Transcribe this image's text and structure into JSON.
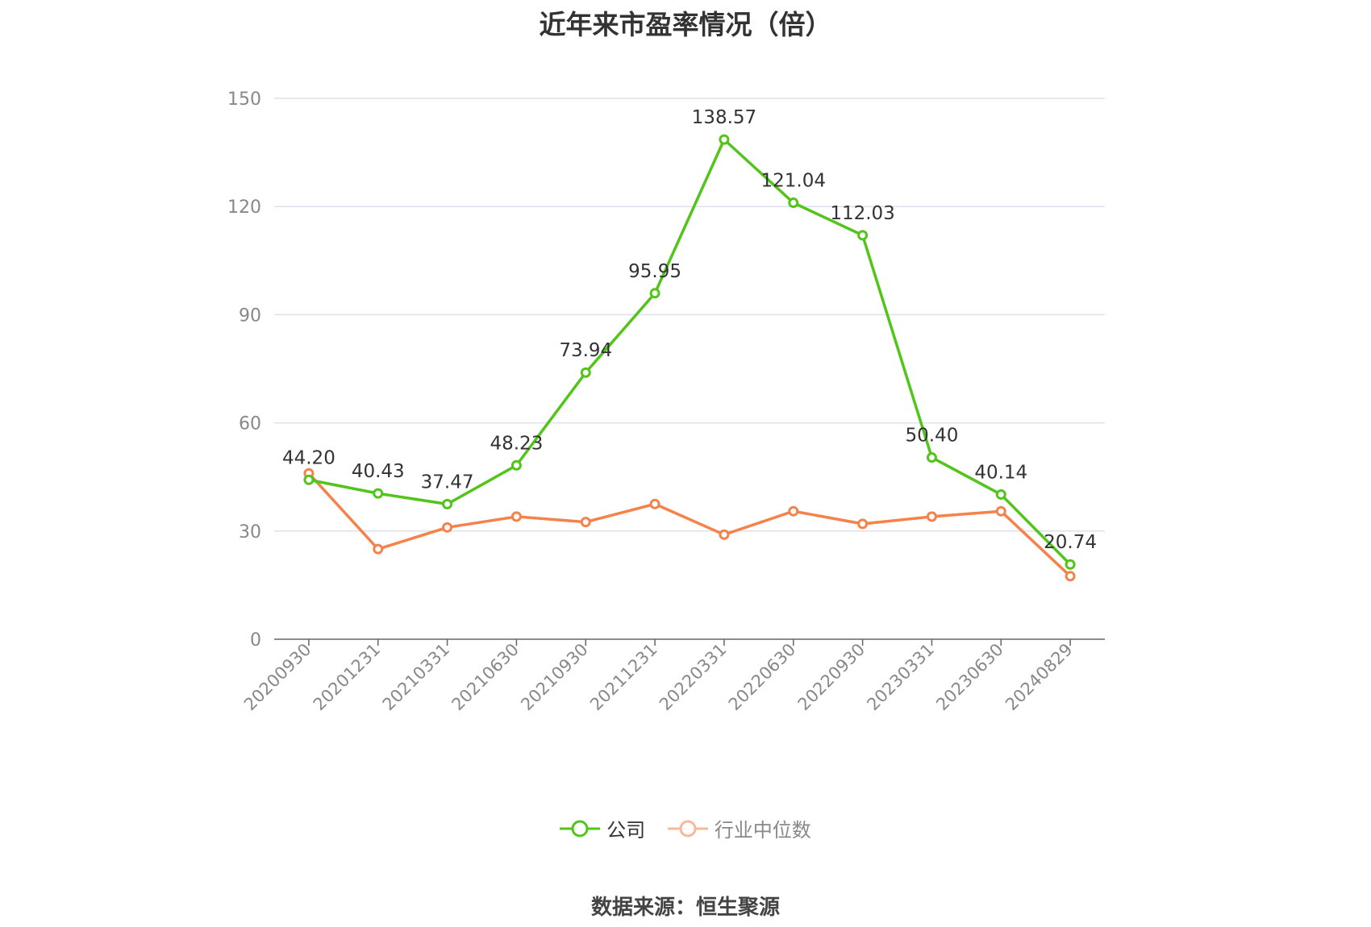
{
  "chart_data": {
    "type": "line",
    "title": "近年来市盈率情况（倍）",
    "categories": [
      "20200930",
      "20201231",
      "20210331",
      "20210630",
      "20210930",
      "20211231",
      "20220331",
      "20220630",
      "20220930",
      "20230331",
      "20230630",
      "20240829"
    ],
    "ylim": [
      0,
      150
    ],
    "yticks": [
      0,
      30,
      60,
      90,
      120,
      150
    ],
    "grid": true,
    "legend_position": "bottom",
    "series": [
      {
        "name": "公司",
        "color": "#52c41a",
        "values": [
          44.2,
          40.43,
          37.47,
          48.23,
          73.94,
          95.95,
          138.57,
          121.04,
          112.03,
          50.4,
          40.14,
          20.74
        ],
        "labels": [
          "44.20",
          "40.43",
          "37.47",
          "48.23",
          "73.94",
          "95.95",
          "138.57",
          "121.04",
          "112.03",
          "50.40",
          "40.14",
          "20.74"
        ]
      },
      {
        "name": "行业中位数",
        "color": "#f5824a",
        "values": [
          46.0,
          25.0,
          31.0,
          34.0,
          32.5,
          37.5,
          29.0,
          35.5,
          32.0,
          34.0,
          35.5,
          17.5
        ]
      }
    ]
  },
  "legend": {
    "company": "公司",
    "industry": "行业中位数"
  },
  "source": "数据来源：恒生聚源"
}
